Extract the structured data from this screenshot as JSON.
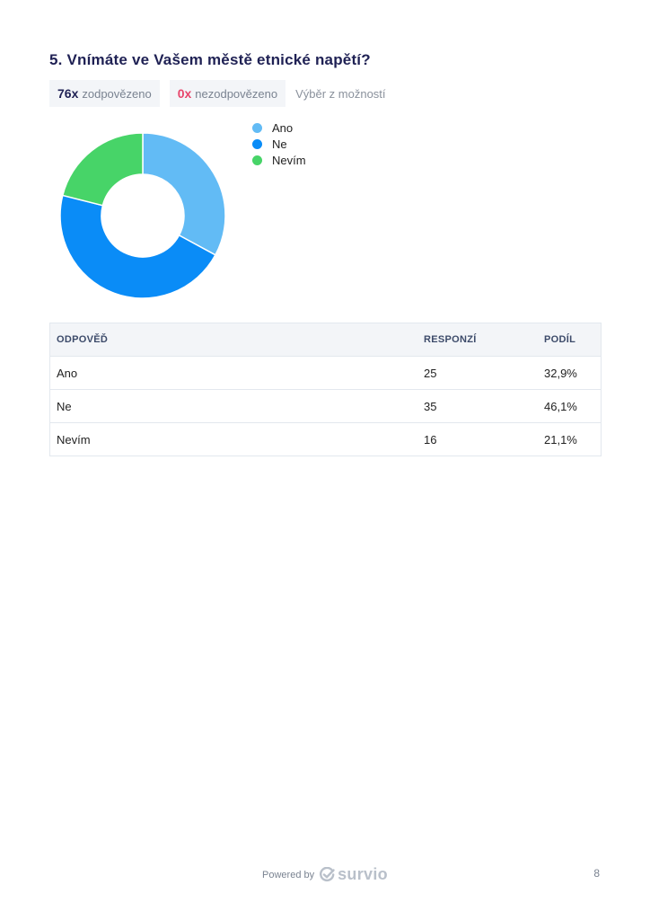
{
  "question": {
    "title": "5. Vnímáte ve Vašem městě etnické napětí?"
  },
  "stats": {
    "answered_count": "76x",
    "answered_label": "zodpovězeno",
    "unanswered_count": "0x",
    "unanswered_label": "nezodpovězeno",
    "question_type": "Výběr z možností"
  },
  "chart_data": {
    "type": "pie",
    "donut": true,
    "legend_position": "right",
    "series": [
      {
        "name": "Ano",
        "value": 25,
        "color": "#62bbf5"
      },
      {
        "name": "Ne",
        "value": 35,
        "color": "#0a8cf7"
      },
      {
        "name": "Nevím",
        "value": 16,
        "color": "#47d468"
      }
    ]
  },
  "table": {
    "headers": [
      "ODPOVĚĎ",
      "RESPONZÍ",
      "PODÍL"
    ],
    "rows": [
      [
        "Ano",
        "25",
        "32,9%"
      ],
      [
        "Ne",
        "35",
        "46,1%"
      ],
      [
        "Nevím",
        "16",
        "21,1%"
      ]
    ]
  },
  "footer": {
    "powered_by": "Powered by",
    "brand": "survio",
    "brand_icon": "survio-check-icon",
    "page_number": "8"
  }
}
